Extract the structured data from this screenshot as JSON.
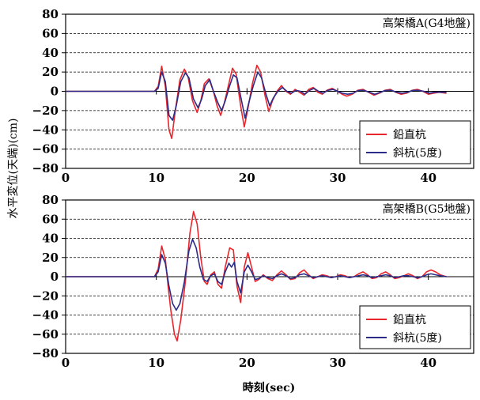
{
  "xlabel": "時刻(sec)",
  "ylabel": "水平変位(天端)(cm)",
  "chart_data": [
    {
      "type": "line",
      "title": "高架橋A(G4地盤)",
      "xlim": [
        0,
        45
      ],
      "ylim": [
        -80,
        80
      ],
      "xticks": [
        0,
        10,
        20,
        30,
        40
      ],
      "yticks": [
        80,
        60,
        40,
        20,
        0,
        -20,
        -40,
        -60,
        -80
      ],
      "grid": "horizontal dashed",
      "legend_position": "lower-right",
      "series": [
        {
          "name": "鉛直杭",
          "color": "#e8262b",
          "points": [
            [
              0,
              0
            ],
            [
              9.8,
              0
            ],
            [
              10.2,
              5
            ],
            [
              10.6,
              26
            ],
            [
              11.0,
              5
            ],
            [
              11.4,
              -40
            ],
            [
              11.7,
              -49
            ],
            [
              12.1,
              -20
            ],
            [
              12.6,
              12
            ],
            [
              13.1,
              23
            ],
            [
              13.5,
              15
            ],
            [
              14.0,
              -10
            ],
            [
              14.5,
              -22
            ],
            [
              14.9,
              -10
            ],
            [
              15.3,
              8
            ],
            [
              15.8,
              13
            ],
            [
              16.3,
              0
            ],
            [
              16.7,
              -15
            ],
            [
              17.1,
              -25
            ],
            [
              17.5,
              -12
            ],
            [
              18.0,
              8
            ],
            [
              18.4,
              24
            ],
            [
              18.8,
              18
            ],
            [
              19.3,
              -15
            ],
            [
              19.7,
              -37
            ],
            [
              20.1,
              -18
            ],
            [
              20.6,
              8
            ],
            [
              21.1,
              27
            ],
            [
              21.5,
              20
            ],
            [
              22.0,
              -5
            ],
            [
              22.4,
              -21
            ],
            [
              22.8,
              -10
            ],
            [
              23.3,
              0
            ],
            [
              23.8,
              6
            ],
            [
              24.3,
              0
            ],
            [
              24.8,
              -3
            ],
            [
              25.3,
              2
            ],
            [
              25.8,
              -1
            ],
            [
              26.3,
              -4
            ],
            [
              26.8,
              2
            ],
            [
              27.3,
              4
            ],
            [
              27.8,
              -1
            ],
            [
              28.3,
              -3
            ],
            [
              28.8,
              1
            ],
            [
              29.4,
              3
            ],
            [
              30.0,
              0
            ],
            [
              30.5,
              -3
            ],
            [
              31.0,
              -5
            ],
            [
              31.6,
              -3
            ],
            [
              32.2,
              1
            ],
            [
              32.8,
              2
            ],
            [
              33.4,
              -1
            ],
            [
              34.0,
              -4
            ],
            [
              34.6,
              -2
            ],
            [
              35.2,
              1
            ],
            [
              35.8,
              2
            ],
            [
              36.4,
              -1
            ],
            [
              37.0,
              -3
            ],
            [
              37.6,
              -2
            ],
            [
              38.2,
              1
            ],
            [
              38.8,
              2
            ],
            [
              39.4,
              0
            ],
            [
              40.0,
              -3
            ],
            [
              40.6,
              -2
            ],
            [
              41.2,
              -1
            ],
            [
              42.0,
              -2
            ]
          ]
        },
        {
          "name": "斜杭(5度)",
          "color": "#2b2b8a",
          "points": [
            [
              0,
              0
            ],
            [
              9.8,
              0
            ],
            [
              10.2,
              3
            ],
            [
              10.6,
              20
            ],
            [
              11.0,
              10
            ],
            [
              11.4,
              -25
            ],
            [
              11.8,
              -30
            ],
            [
              12.2,
              -15
            ],
            [
              12.7,
              10
            ],
            [
              13.2,
              19
            ],
            [
              13.6,
              14
            ],
            [
              14.1,
              -8
            ],
            [
              14.6,
              -17
            ],
            [
              15.0,
              -8
            ],
            [
              15.4,
              6
            ],
            [
              15.9,
              12
            ],
            [
              16.3,
              0
            ],
            [
              16.8,
              -12
            ],
            [
              17.2,
              -20
            ],
            [
              17.6,
              -10
            ],
            [
              18.1,
              6
            ],
            [
              18.5,
              17
            ],
            [
              18.9,
              14
            ],
            [
              19.4,
              -10
            ],
            [
              19.8,
              -28
            ],
            [
              20.2,
              -12
            ],
            [
              20.7,
              6
            ],
            [
              21.2,
              20
            ],
            [
              21.6,
              14
            ],
            [
              22.1,
              -3
            ],
            [
              22.5,
              -15
            ],
            [
              22.9,
              -7
            ],
            [
              23.4,
              0
            ],
            [
              23.9,
              4
            ],
            [
              24.4,
              0
            ],
            [
              24.9,
              -2
            ],
            [
              25.4,
              1
            ],
            [
              25.9,
              0
            ],
            [
              26.4,
              -3
            ],
            [
              26.9,
              1
            ],
            [
              27.4,
              3
            ],
            [
              27.9,
              0
            ],
            [
              28.4,
              -2
            ],
            [
              28.9,
              1
            ],
            [
              29.5,
              2
            ],
            [
              30.0,
              0
            ],
            [
              30.5,
              -2
            ],
            [
              31.1,
              -3
            ],
            [
              31.7,
              -2
            ],
            [
              32.3,
              1
            ],
            [
              32.9,
              1
            ],
            [
              33.5,
              -1
            ],
            [
              34.1,
              -3
            ],
            [
              34.7,
              -1
            ],
            [
              35.3,
              1
            ],
            [
              35.9,
              1
            ],
            [
              36.5,
              -1
            ],
            [
              37.1,
              -2
            ],
            [
              37.7,
              -1
            ],
            [
              38.3,
              1
            ],
            [
              38.9,
              1
            ],
            [
              39.5,
              0
            ],
            [
              40.1,
              -2
            ],
            [
              40.7,
              -1
            ],
            [
              41.3,
              -1
            ],
            [
              42.0,
              -1
            ]
          ]
        }
      ]
    },
    {
      "type": "line",
      "title": "高架橋B(G5地盤)",
      "xlim": [
        0,
        45
      ],
      "ylim": [
        -80,
        80
      ],
      "xticks": [
        0,
        10,
        20,
        30,
        40
      ],
      "yticks": [
        80,
        60,
        40,
        20,
        0,
        -20,
        -40,
        -60,
        -80
      ],
      "grid": "horizontal dashed",
      "legend_position": "lower-right",
      "series": [
        {
          "name": "鉛直杭",
          "color": "#e8262b",
          "points": [
            [
              0,
              0
            ],
            [
              9.8,
              0
            ],
            [
              10.2,
              8
            ],
            [
              10.6,
              32
            ],
            [
              11.0,
              18
            ],
            [
              11.3,
              -10
            ],
            [
              11.6,
              -35
            ],
            [
              12.0,
              -60
            ],
            [
              12.3,
              -67
            ],
            [
              12.7,
              -45
            ],
            [
              13.2,
              -5
            ],
            [
              13.7,
              45
            ],
            [
              14.1,
              68
            ],
            [
              14.5,
              55
            ],
            [
              14.9,
              20
            ],
            [
              15.3,
              -5
            ],
            [
              15.6,
              -8
            ],
            [
              16.0,
              2
            ],
            [
              16.4,
              5
            ],
            [
              16.8,
              -8
            ],
            [
              17.2,
              -12
            ],
            [
              17.6,
              10
            ],
            [
              18.1,
              30
            ],
            [
              18.5,
              28
            ],
            [
              18.9,
              -10
            ],
            [
              19.3,
              -27
            ],
            [
              19.7,
              10
            ],
            [
              20.1,
              25
            ],
            [
              20.5,
              10
            ],
            [
              20.9,
              -5
            ],
            [
              21.3,
              -3
            ],
            [
              21.8,
              2
            ],
            [
              22.3,
              -2
            ],
            [
              22.8,
              -4
            ],
            [
              23.3,
              2
            ],
            [
              23.8,
              6
            ],
            [
              24.3,
              2
            ],
            [
              24.8,
              -3
            ],
            [
              25.3,
              -2
            ],
            [
              25.8,
              4
            ],
            [
              26.3,
              7
            ],
            [
              26.8,
              2
            ],
            [
              27.3,
              -2
            ],
            [
              27.8,
              0
            ],
            [
              28.3,
              2
            ],
            [
              28.8,
              1
            ],
            [
              29.3,
              -1
            ],
            [
              29.8,
              0
            ],
            [
              30.3,
              2
            ],
            [
              30.8,
              1
            ],
            [
              31.3,
              -1
            ],
            [
              31.8,
              0
            ],
            [
              32.3,
              3
            ],
            [
              32.8,
              5
            ],
            [
              33.3,
              2
            ],
            [
              33.8,
              -2
            ],
            [
              34.3,
              -1
            ],
            [
              34.8,
              3
            ],
            [
              35.3,
              5
            ],
            [
              35.8,
              2
            ],
            [
              36.3,
              -2
            ],
            [
              36.8,
              -1
            ],
            [
              37.3,
              1
            ],
            [
              37.8,
              3
            ],
            [
              38.3,
              1
            ],
            [
              38.8,
              -2
            ],
            [
              39.3,
              0
            ],
            [
              39.8,
              5
            ],
            [
              40.3,
              7
            ],
            [
              40.8,
              5
            ],
            [
              41.3,
              2
            ],
            [
              42.0,
              0
            ]
          ]
        },
        {
          "name": "斜杭(5度)",
          "color": "#2b2b8a",
          "points": [
            [
              0,
              0
            ],
            [
              9.8,
              0
            ],
            [
              10.2,
              5
            ],
            [
              10.6,
              23
            ],
            [
              11.0,
              14
            ],
            [
              11.4,
              -10
            ],
            [
              11.8,
              -28
            ],
            [
              12.2,
              -35
            ],
            [
              12.6,
              -28
            ],
            [
              13.1,
              -5
            ],
            [
              13.6,
              27
            ],
            [
              14.0,
              39
            ],
            [
              14.4,
              30
            ],
            [
              14.8,
              10
            ],
            [
              15.2,
              -3
            ],
            [
              15.6,
              -5
            ],
            [
              16.0,
              1
            ],
            [
              16.4,
              3
            ],
            [
              16.8,
              -5
            ],
            [
              17.2,
              -8
            ],
            [
              17.6,
              5
            ],
            [
              18.0,
              14
            ],
            [
              18.3,
              10
            ],
            [
              18.6,
              15
            ],
            [
              18.9,
              -5
            ],
            [
              19.3,
              -17
            ],
            [
              19.7,
              5
            ],
            [
              20.1,
              12
            ],
            [
              20.5,
              5
            ],
            [
              20.9,
              -3
            ],
            [
              21.3,
              -2
            ],
            [
              21.8,
              1
            ],
            [
              22.3,
              -1
            ],
            [
              22.8,
              -2
            ],
            [
              23.3,
              1
            ],
            [
              23.8,
              3
            ],
            [
              24.3,
              1
            ],
            [
              24.8,
              -2
            ],
            [
              25.3,
              -1
            ],
            [
              25.8,
              2
            ],
            [
              26.3,
              3
            ],
            [
              26.8,
              1
            ],
            [
              27.3,
              -1
            ],
            [
              27.8,
              0
            ],
            [
              28.3,
              1
            ],
            [
              28.8,
              0
            ],
            [
              29.3,
              -1
            ],
            [
              29.8,
              0
            ],
            [
              30.3,
              1
            ],
            [
              30.8,
              0
            ],
            [
              31.3,
              -1
            ],
            [
              31.8,
              0
            ],
            [
              32.3,
              1
            ],
            [
              32.8,
              2
            ],
            [
              33.3,
              1
            ],
            [
              33.8,
              -1
            ],
            [
              34.3,
              0
            ],
            [
              34.8,
              1
            ],
            [
              35.3,
              2
            ],
            [
              35.8,
              1
            ],
            [
              36.3,
              -1
            ],
            [
              36.8,
              0
            ],
            [
              37.3,
              1
            ],
            [
              37.8,
              1
            ],
            [
              38.3,
              0
            ],
            [
              38.8,
              -1
            ],
            [
              39.3,
              0
            ],
            [
              39.8,
              2
            ],
            [
              40.3,
              3
            ],
            [
              40.8,
              2
            ],
            [
              41.3,
              1
            ],
            [
              42.0,
              0
            ]
          ]
        }
      ]
    }
  ]
}
